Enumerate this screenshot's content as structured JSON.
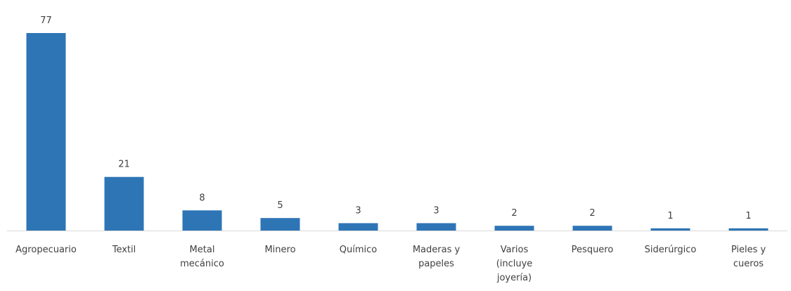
{
  "chart_data": {
    "type": "bar",
    "categories": [
      [
        "Agropecuario"
      ],
      [
        "Textil"
      ],
      [
        "Metal",
        "mecánico"
      ],
      [
        "Minero"
      ],
      [
        "Químico"
      ],
      [
        "Maderas y",
        "papeles"
      ],
      [
        "Varios",
        "(incluye",
        "joyería)"
      ],
      [
        "Pesquero"
      ],
      [
        "Siderúrgico"
      ],
      [
        "Pieles y",
        "cueros"
      ]
    ],
    "values": [
      77,
      21,
      8,
      5,
      3,
      3,
      2,
      2,
      1,
      1
    ],
    "data_labels": [
      "77",
      "21",
      "8",
      "5",
      "3",
      "3",
      "2",
      "2",
      "1",
      "1"
    ],
    "ylim": [
      0,
      77
    ],
    "grid": false,
    "legend": "none",
    "bar_color": "#2E75B6",
    "axis_color": "#D9D9D9",
    "label_color": "#404040"
  }
}
